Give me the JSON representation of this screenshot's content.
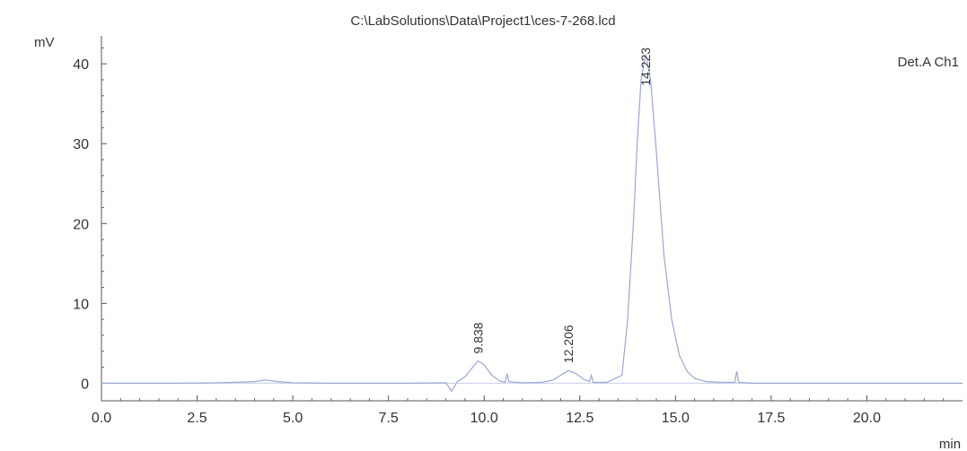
{
  "chart_data": {
    "type": "line",
    "title": "C:\\LabSolutions\\Data\\Project1\\ces-7-268.lcd",
    "ylabel": "mV",
    "xlabel": "min",
    "legend": "Det.A Ch1",
    "legend_placement": "top-right",
    "grid": false,
    "xlim": [
      0,
      22.5
    ],
    "ylim": [
      -2.2,
      43.5
    ],
    "x_ticks": [
      "0.0",
      "2.5",
      "5.0",
      "7.5",
      "10.0",
      "12.5",
      "15.0",
      "17.5",
      "20.0"
    ],
    "y_ticks": [
      "0",
      "10",
      "20",
      "30",
      "40"
    ],
    "peaks": [
      {
        "label": "9.838",
        "x": 9.838,
        "y": 2.8
      },
      {
        "label": "12.206",
        "x": 12.206,
        "y": 1.6
      },
      {
        "label": "14.223",
        "x": 14.223,
        "y": 41.2
      }
    ],
    "series": [
      {
        "x": [
          0.0,
          1.0,
          2.0,
          3.0,
          4.0,
          4.3,
          4.6,
          5.0,
          6.0,
          7.0,
          8.0,
          9.0,
          9.15,
          9.3,
          9.5,
          9.7,
          9.838,
          10.0,
          10.2,
          10.4,
          10.55,
          10.6,
          10.65,
          11.0,
          11.5,
          11.8,
          12.0,
          12.206,
          12.4,
          12.6,
          12.75,
          12.8,
          12.85,
          13.2,
          13.6,
          13.75,
          13.9,
          14.0,
          14.1,
          14.223,
          14.35,
          14.5,
          14.7,
          14.9,
          15.1,
          15.3,
          15.5,
          15.8,
          16.2,
          16.55,
          16.6,
          16.65,
          17.0,
          18.0,
          19.0,
          20.0,
          21.0,
          22.0,
          22.5
        ],
        "y": [
          0.0,
          0.0,
          0.0,
          0.05,
          0.2,
          0.4,
          0.2,
          0.05,
          0.0,
          0.0,
          0.0,
          0.05,
          -1.0,
          0.2,
          0.8,
          2.0,
          2.8,
          2.3,
          1.0,
          0.3,
          0.1,
          1.2,
          0.2,
          0.05,
          0.1,
          0.4,
          1.0,
          1.6,
          1.2,
          0.5,
          0.2,
          1.0,
          0.1,
          0.1,
          1.0,
          8.0,
          20.0,
          30.0,
          38.0,
          41.2,
          38.0,
          29.0,
          16.0,
          8.0,
          3.5,
          1.5,
          0.6,
          0.2,
          0.1,
          0.1,
          1.5,
          0.1,
          0.0,
          0.0,
          0.0,
          0.0,
          0.0,
          0.0,
          0.0
        ]
      }
    ]
  }
}
